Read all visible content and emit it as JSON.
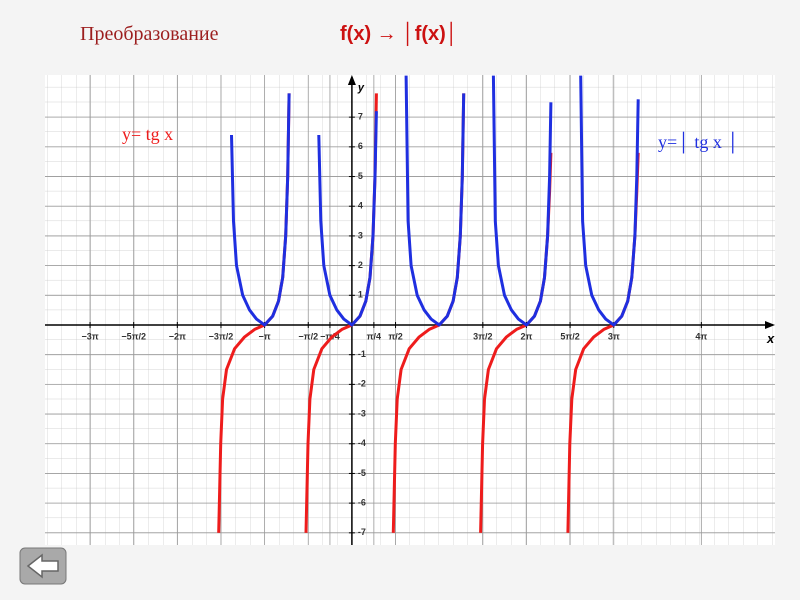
{
  "header": {
    "title": "Преобразование",
    "formula": "f(x) → │f(x)│"
  },
  "chart_data": {
    "type": "line",
    "xlabel": "x",
    "ylabel": "y",
    "xlim": [
      -11.04,
      15.22
    ],
    "ylim": [
      -7.41,
      8.42
    ],
    "xticks": [
      {
        "value": -9.42,
        "label": "−3π"
      },
      {
        "value": -7.85,
        "label": "−5π/2"
      },
      {
        "value": -6.28,
        "label": "−2π"
      },
      {
        "value": -4.71,
        "label": "−3π/2"
      },
      {
        "value": -3.14,
        "label": "−π"
      },
      {
        "value": -1.57,
        "label": "−π/2"
      },
      {
        "value": -0.79,
        "label": "−π/4"
      },
      {
        "value": 0.79,
        "label": "π/4"
      },
      {
        "value": 1.57,
        "label": "π/2"
      },
      {
        "value": 4.71,
        "label": "3π/2"
      },
      {
        "value": 6.28,
        "label": "2π"
      },
      {
        "value": 7.85,
        "label": "5π/2"
      },
      {
        "value": 9.42,
        "label": "3π"
      },
      {
        "value": 12.57,
        "label": "4π"
      }
    ],
    "yticks": [
      -7,
      -6,
      -5,
      -4,
      -3,
      -2,
      -1,
      1,
      2,
      3,
      4,
      5,
      6,
      7
    ],
    "grid": true,
    "series": [
      {
        "name": "y= tg x",
        "color": "#ee1c1c",
        "x": [
          -4.79,
          -4.72,
          -4.65,
          -4.51,
          -4.22,
          -3.86,
          -3.5,
          -3.14,
          -2.85,
          -2.64,
          -2.49,
          -2.38,
          -2.31,
          -2.26,
          null,
          -1.65,
          -1.58,
          -1.51,
          -1.37,
          -1.08,
          -0.72,
          -0.36,
          0,
          0.29,
          0.5,
          0.65,
          0.76,
          0.83,
          0.88,
          null,
          1.49,
          1.56,
          1.63,
          1.77,
          2.06,
          2.42,
          2.78,
          3.14,
          3.43,
          3.64,
          3.79,
          3.9,
          3.97,
          4.02,
          null,
          4.63,
          4.7,
          4.77,
          4.91,
          5.2,
          5.56,
          5.92,
          6.28,
          6.57,
          6.78,
          6.93,
          7.04,
          7.11,
          7.16,
          null,
          7.77,
          7.84,
          7.91,
          8.05,
          8.34,
          8.7,
          9.06,
          9.42,
          9.71,
          9.92,
          10.07,
          10.18,
          10.25,
          10.3
        ],
        "values": [
          -7,
          -4,
          -2.5,
          -1.5,
          -0.8,
          -0.4,
          -0.15,
          0,
          0.3,
          0.8,
          1.6,
          3,
          5,
          7.8,
          null,
          -7,
          -4,
          -2.5,
          -1.5,
          -0.8,
          -0.4,
          -0.15,
          0,
          0.3,
          0.8,
          1.6,
          3,
          5,
          7.8,
          null,
          -7,
          -4,
          -2.5,
          -1.5,
          -0.8,
          -0.4,
          -0.15,
          0,
          0.3,
          0.8,
          1.6,
          3,
          5,
          7.8,
          null,
          -7,
          -4,
          -2.5,
          -1.5,
          -0.8,
          -0.4,
          -0.15,
          0,
          0.3,
          0.8,
          1.6,
          3,
          4.5,
          5.8,
          null,
          -7,
          -4,
          -2.5,
          -1.5,
          -0.8,
          -0.4,
          -0.15,
          0,
          0.3,
          0.8,
          1.6,
          3,
          4.5,
          5.8
        ]
      },
      {
        "name": "y=│ tg x │",
        "color": "#1f2fe0",
        "x": [
          -4.33,
          -4.26,
          -4.15,
          -3.93,
          -3.68,
          -3.43,
          -3.14,
          -2.85,
          -2.64,
          -2.49,
          -2.38,
          -2.31,
          -2.26,
          null,
          -1.19,
          -1.12,
          -1.01,
          -0.79,
          -0.54,
          -0.29,
          0,
          0.29,
          0.5,
          0.65,
          0.76,
          0.83,
          0.88,
          null,
          1.95,
          2.02,
          2.13,
          2.35,
          2.6,
          2.85,
          3.14,
          3.43,
          3.64,
          3.79,
          3.9,
          3.97,
          4.02,
          null,
          5.09,
          5.16,
          5.27,
          5.49,
          5.74,
          5.99,
          6.28,
          6.57,
          6.78,
          6.93,
          7.04,
          7.11,
          7.16,
          null,
          8.23,
          8.3,
          8.41,
          8.63,
          8.88,
          9.13,
          9.42,
          9.71,
          9.92,
          10.07,
          10.18,
          10.25,
          10.3
        ],
        "values": [
          6.4,
          3.5,
          2,
          1,
          0.5,
          0.2,
          0,
          0.3,
          0.8,
          1.6,
          3,
          5,
          7.8,
          null,
          6.4,
          3.5,
          2,
          1,
          0.5,
          0.2,
          0,
          0.3,
          0.8,
          1.6,
          3,
          5,
          7.2,
          null,
          8.4,
          3.5,
          2,
          1,
          0.5,
          0.2,
          0,
          0.3,
          0.8,
          1.6,
          3,
          5,
          7.8,
          null,
          8.4,
          3.5,
          2,
          1,
          0.5,
          0.2,
          0,
          0.3,
          0.8,
          1.6,
          3,
          5,
          7.5,
          null,
          8.4,
          3.5,
          2,
          1,
          0.5,
          0.2,
          0,
          0.3,
          0.8,
          1.6,
          3,
          5,
          7.6
        ]
      }
    ]
  }
}
